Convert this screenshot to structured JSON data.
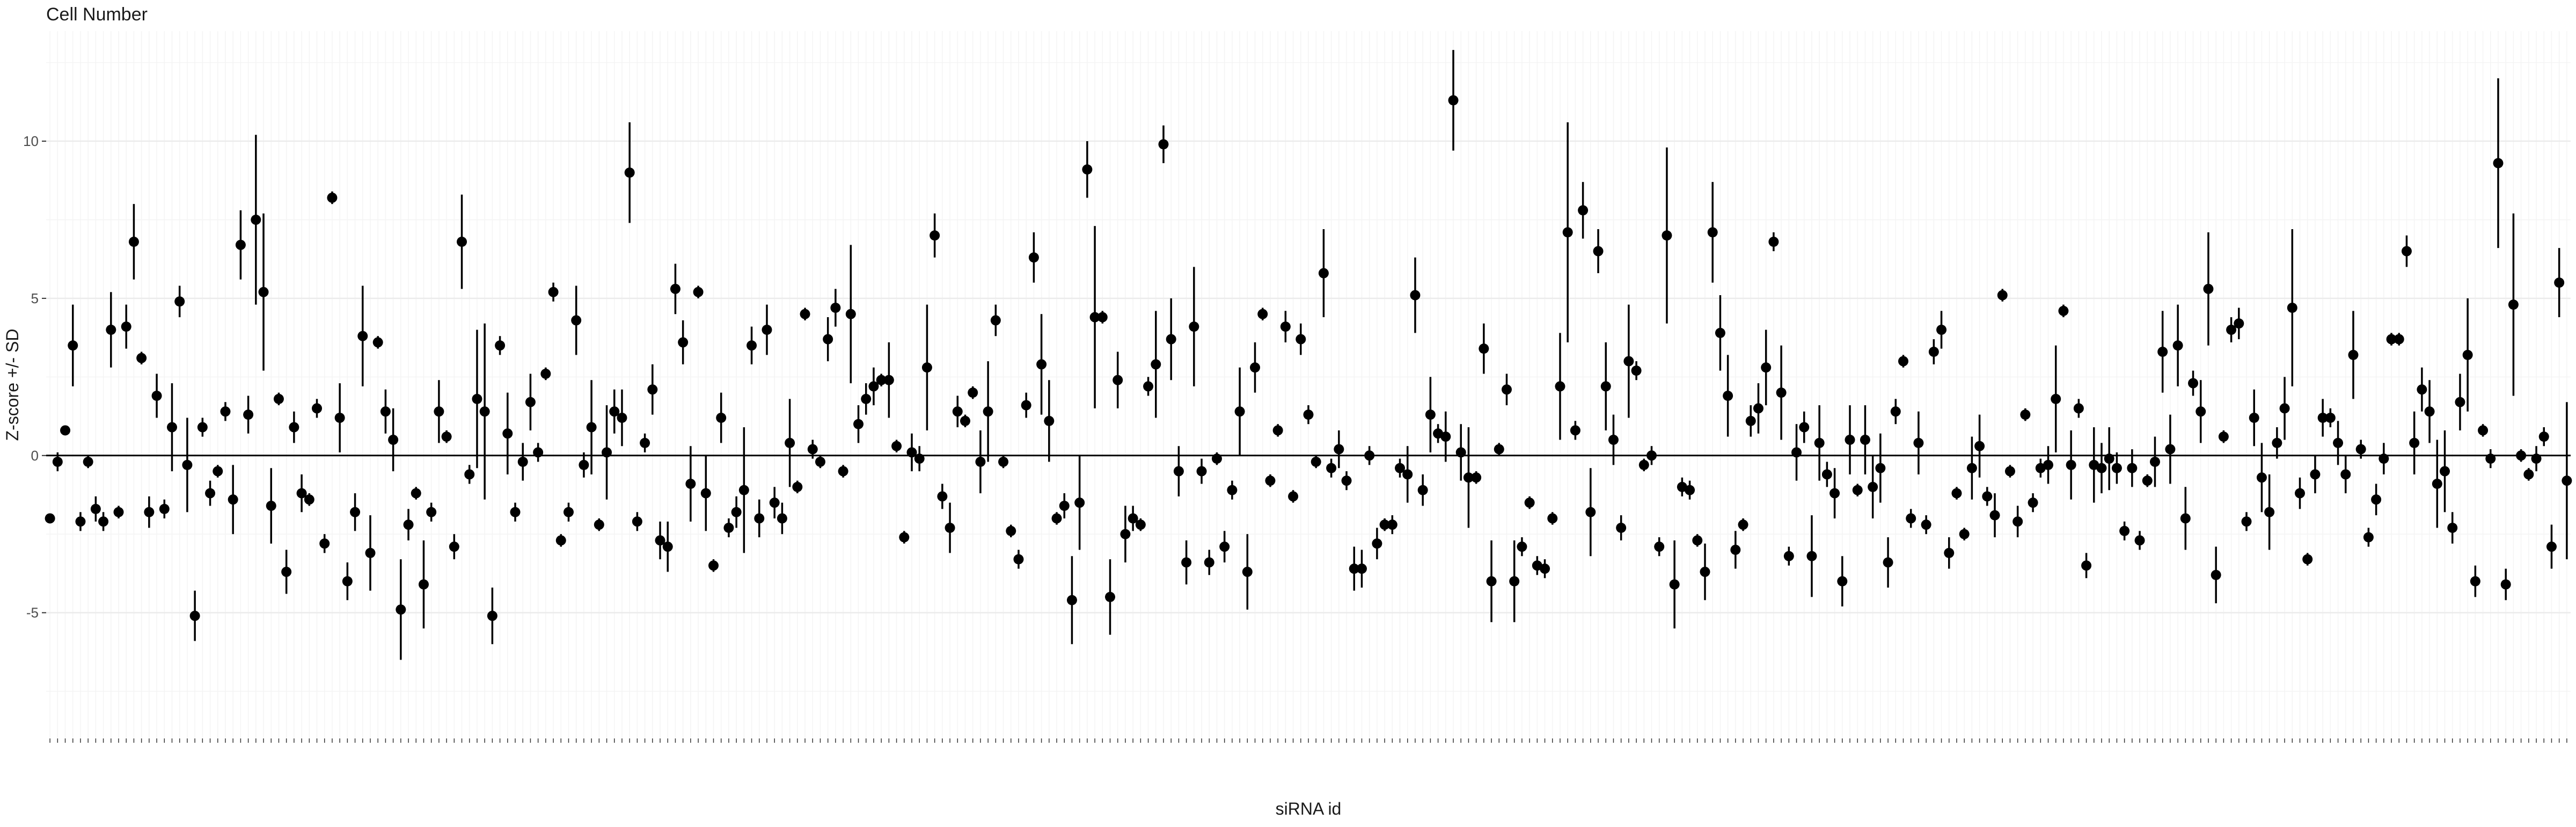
{
  "chart_data": {
    "type": "scatter",
    "title": "Cell Number",
    "xlabel": "siRNA id",
    "ylabel": "Z-score +/- SD",
    "ylim": [
      -9,
      13.5
    ],
    "yticks": [
      -5,
      0,
      5,
      10
    ],
    "ytick_labels": [
      "-5",
      "0",
      "5",
      "10"
    ],
    "reference_line": 0,
    "grid": true,
    "legend": "none",
    "colors": {
      "point": "#000000",
      "errorbar": "#000000",
      "grid_major": "#ebebeb",
      "grid_minor": "#f4f4f4",
      "zero_line": "#000000"
    },
    "x_tick_labels_legible": false,
    "series": [
      {
        "values": [
          -2.0,
          -0.2,
          0.8,
          3.5,
          -2.1,
          -0.2,
          -1.7,
          -2.1,
          4.0,
          -1.8,
          4.1,
          6.8,
          3.1,
          -1.8,
          1.9,
          -1.7,
          0.9,
          4.9,
          -0.3,
          -5.1,
          0.9,
          -1.2,
          -0.5,
          1.4,
          -1.4,
          6.7,
          1.3,
          7.5,
          5.2,
          -1.6,
          1.8,
          -3.7,
          0.9,
          -1.2,
          -1.4,
          1.5,
          -2.8,
          8.2,
          1.2,
          -4.0,
          -1.8,
          3.8,
          -3.1,
          3.6,
          1.4,
          0.5,
          -4.9,
          -2.2,
          -1.2,
          -4.1,
          -1.8,
          1.4,
          0.6,
          -2.9,
          6.8,
          -0.6,
          1.8,
          1.4,
          -5.1,
          3.5,
          0.7,
          -1.8,
          -0.2,
          1.7,
          0.1,
          2.6,
          5.2,
          -2.7,
          -1.8,
          4.3,
          -0.3,
          0.9,
          -2.2,
          0.1,
          1.4,
          1.2,
          9.0,
          -2.1,
          0.4,
          2.1,
          -2.7,
          -2.9,
          5.3,
          3.6,
          -0.9,
          5.2,
          -1.2,
          -3.5,
          1.2,
          -2.3,
          -1.8,
          -1.1,
          3.5,
          -2.0,
          4.0,
          -1.5,
          -2.0,
          0.4,
          -1.0,
          4.5,
          0.2,
          -0.2,
          3.7,
          4.7,
          -0.5,
          4.5,
          1.0,
          1.8,
          2.2,
          2.4,
          2.4,
          0.3,
          -2.6,
          0.1,
          -0.1,
          2.8,
          7.0,
          -1.3,
          -2.3,
          1.4,
          1.1,
          2.0,
          -0.2,
          1.4,
          4.3,
          -0.2,
          -2.4,
          -3.3,
          1.6,
          6.3,
          2.9,
          1.1,
          -2.0,
          -1.6,
          -4.6,
          -1.5,
          9.1,
          4.4,
          4.4,
          -4.5,
          2.4,
          -2.5,
          -2.0,
          -2.2,
          2.2,
          2.9,
          9.9,
          3.7,
          -0.5,
          -3.4,
          4.1,
          -0.5,
          -3.4,
          -0.1,
          -2.9,
          -1.1,
          1.4,
          -3.7,
          2.8,
          4.5,
          -0.8,
          0.8,
          4.1,
          -1.3,
          3.7,
          1.3,
          -0.2,
          5.8,
          -0.4,
          0.2,
          -0.8,
          -3.6,
          -3.6,
          0.0,
          -2.8,
          -2.2,
          -2.2,
          -0.4,
          -0.6,
          5.1,
          -1.1,
          1.3,
          0.7,
          0.6,
          11.3,
          0.1,
          -0.7,
          -0.7,
          3.4,
          -4.0,
          0.2,
          2.1,
          -4.0,
          -2.9,
          -1.5,
          -3.5,
          -3.6,
          -2.0,
          2.2,
          7.1,
          0.8,
          7.8,
          -1.8,
          6.5,
          2.2,
          0.5,
          -2.3,
          3.0,
          2.7,
          -0.3,
          0.0,
          -2.9,
          7.0,
          -4.1,
          -1.0,
          -1.1,
          -2.7,
          -3.7,
          7.1,
          3.9,
          1.9,
          -3.0,
          -2.2,
          1.1,
          1.5,
          2.8,
          6.8,
          2.0,
          -3.2,
          0.1,
          0.9,
          -3.2,
          0.4,
          -0.6,
          -1.2,
          -4.0,
          0.5,
          -1.1,
          0.5,
          -1.0,
          -0.4,
          -3.4,
          1.4,
          3.0,
          -2.0,
          0.4,
          -2.2,
          3.3,
          4.0,
          -3.1,
          -1.2,
          -2.5,
          -0.4,
          0.3,
          -1.3,
          -1.9,
          5.1,
          -0.5,
          -2.1,
          1.3,
          -1.5,
          -0.4,
          -0.3,
          1.8,
          4.6,
          -0.3,
          1.5,
          -3.5,
          -0.3,
          -0.4,
          -0.1,
          -0.4,
          -2.4,
          -0.4,
          -2.7,
          -0.8,
          -0.2,
          3.3,
          0.2,
          3.5,
          -2.0,
          2.3,
          1.4,
          5.3,
          -3.8,
          0.6,
          4.0,
          4.2,
          -2.1,
          1.2,
          -0.7,
          -1.8,
          0.4,
          1.5,
          4.7,
          -1.2,
          -3.3,
          -0.6,
          1.2,
          1.2,
          0.4,
          -0.6,
          3.2,
          0.2,
          -2.6,
          -1.4,
          -0.1,
          3.7,
          3.7,
          6.5,
          0.4,
          2.1,
          1.4,
          -0.9,
          -0.5,
          -2.3,
          1.7,
          3.2,
          -4.0,
          0.8,
          -0.1,
          9.3,
          -4.1,
          4.8,
          0.0,
          -0.6,
          -0.1,
          0.6,
          -2.9,
          5.5,
          -0.8
        ],
        "sd": [
          0.1,
          0.3,
          0.1,
          1.3,
          0.3,
          0.2,
          0.4,
          0.3,
          1.2,
          0.2,
          0.7,
          1.2,
          0.2,
          0.5,
          0.7,
          0.3,
          1.4,
          0.5,
          1.5,
          0.8,
          0.3,
          0.4,
          0.2,
          0.3,
          1.1,
          1.1,
          0.6,
          2.7,
          2.5,
          1.2,
          0.2,
          0.7,
          0.5,
          0.6,
          0.2,
          0.3,
          0.3,
          0.2,
          1.1,
          0.6,
          0.6,
          1.6,
          1.2,
          0.2,
          0.7,
          1.0,
          1.6,
          0.5,
          0.2,
          1.4,
          0.3,
          1.0,
          0.2,
          0.4,
          1.5,
          0.3,
          2.2,
          2.8,
          0.9,
          0.3,
          1.3,
          0.3,
          0.6,
          0.9,
          0.3,
          0.2,
          0.3,
          0.2,
          0.3,
          1.1,
          0.4,
          1.5,
          0.2,
          1.5,
          0.7,
          0.9,
          1.6,
          0.3,
          0.3,
          0.8,
          0.6,
          0.8,
          0.8,
          0.7,
          1.2,
          0.2,
          1.2,
          0.2,
          0.8,
          0.3,
          0.5,
          2.0,
          0.6,
          0.6,
          0.8,
          0.5,
          0.5,
          1.4,
          0.2,
          0.2,
          0.3,
          0.2,
          0.7,
          0.6,
          0.2,
          2.2,
          0.6,
          0.5,
          0.6,
          0.2,
          1.2,
          0.2,
          0.2,
          0.6,
          0.4,
          2.0,
          0.7,
          0.4,
          0.8,
          0.5,
          0.2,
          0.2,
          1.0,
          1.6,
          0.5,
          0.2,
          0.2,
          0.3,
          0.4,
          0.8,
          1.6,
          1.3,
          0.2,
          0.4,
          1.4,
          1.5,
          0.9,
          2.9,
          0.2,
          1.2,
          0.9,
          0.9,
          0.4,
          0.2,
          0.3,
          1.7,
          0.6,
          1.3,
          0.8,
          0.7,
          1.9,
          0.4,
          0.4,
          0.2,
          0.5,
          0.3,
          1.4,
          1.2,
          0.8,
          0.2,
          0.2,
          0.2,
          0.5,
          0.2,
          0.5,
          0.3,
          0.2,
          1.4,
          0.3,
          0.6,
          0.3,
          0.7,
          0.6,
          0.3,
          0.5,
          0.2,
          0.3,
          0.3,
          0.9,
          1.2,
          0.5,
          1.2,
          0.3,
          0.8,
          1.6,
          0.9,
          1.6,
          0.2,
          0.8,
          1.3,
          0.2,
          0.5,
          1.3,
          0.3,
          0.2,
          0.3,
          0.3,
          0.2,
          1.7,
          3.5,
          0.3,
          0.9,
          1.4,
          0.7,
          1.4,
          0.8,
          0.4,
          1.8,
          0.3,
          0.2,
          0.3,
          0.3,
          2.8,
          1.4,
          0.3,
          0.3,
          0.2,
          0.9,
          1.6,
          1.2,
          1.3,
          0.6,
          0.2,
          0.5,
          0.8,
          1.2,
          0.3,
          1.5,
          0.3,
          0.9,
          0.5,
          1.3,
          1.2,
          0.4,
          0.8,
          0.8,
          1.1,
          0.2,
          1.1,
          1.0,
          1.1,
          0.8,
          0.4,
          0.2,
          0.3,
          1.0,
          0.3,
          0.4,
          0.6,
          0.5,
          0.2,
          0.2,
          1.0,
          1.0,
          0.3,
          0.7,
          0.2,
          0.2,
          0.5,
          0.2,
          0.3,
          0.3,
          0.6,
          1.7,
          0.2,
          1.1,
          0.3,
          0.4,
          1.2,
          0.8,
          1.0,
          0.5,
          0.3,
          0.6,
          0.3,
          0.2,
          0.8,
          1.3,
          1.1,
          1.3,
          1.0,
          0.4,
          1.0,
          1.8,
          0.9,
          0.2,
          0.4,
          0.5,
          0.3,
          0.9,
          1.1,
          1.2,
          0.5,
          1.0,
          2.5,
          0.5,
          0.2,
          0.6,
          0.6,
          0.3,
          0.7,
          0.6,
          1.4,
          0.3,
          0.3,
          0.5,
          0.5,
          0.2,
          0.2,
          0.5,
          1.0,
          0.7,
          1.0,
          1.4,
          1.3,
          0.5,
          0.9,
          1.8,
          0.5,
          0.2,
          0.3,
          2.7,
          0.5,
          2.9,
          0.2,
          0.2,
          0.4,
          0.3,
          0.7,
          1.1,
          2.5
        ]
      }
    ]
  }
}
